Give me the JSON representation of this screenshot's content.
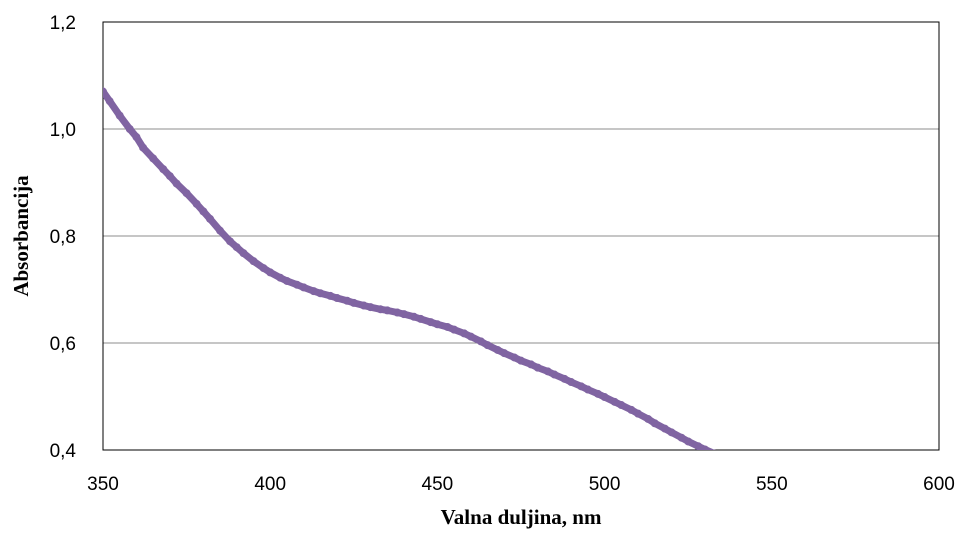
{
  "chart_data": {
    "type": "scatter",
    "title": "",
    "xlabel": "Valna duljina, nm",
    "ylabel": "Absorbancija",
    "xlim": [
      350,
      600
    ],
    "ylim": [
      0.4,
      1.2
    ],
    "x_ticks": [
      "350",
      "400",
      "450",
      "500",
      "550",
      "600"
    ],
    "y_ticks": [
      "0,4",
      "0,6",
      "0,8",
      "1,0",
      "1,2"
    ],
    "grid": "horizontal",
    "legend": "none",
    "marker_color": "#8064A2",
    "series": [
      {
        "x": [
          350,
          352,
          355,
          358,
          360,
          362,
          365,
          368,
          370,
          372,
          375,
          378,
          380,
          382,
          385,
          388,
          390,
          392,
          395,
          398,
          400,
          403,
          405,
          408,
          410,
          413,
          415,
          418,
          420,
          423,
          425,
          428,
          430,
          433,
          435,
          438,
          440,
          443,
          445,
          448,
          450,
          453,
          455,
          458,
          460,
          463,
          465,
          468,
          470,
          473,
          475,
          478,
          480,
          483,
          485,
          488,
          490,
          493,
          495,
          498,
          500,
          503,
          505,
          508,
          510,
          513,
          515,
          518,
          520,
          523,
          525,
          528,
          530,
          533,
          535,
          538,
          540,
          543,
          545
        ],
        "y": [
          1.07,
          1.052,
          1.025,
          1.0,
          0.985,
          0.965,
          0.945,
          0.925,
          0.912,
          0.898,
          0.88,
          0.86,
          0.846,
          0.832,
          0.81,
          0.79,
          0.779,
          0.768,
          0.753,
          0.74,
          0.732,
          0.722,
          0.716,
          0.709,
          0.704,
          0.697,
          0.693,
          0.688,
          0.684,
          0.679,
          0.675,
          0.67,
          0.667,
          0.663,
          0.661,
          0.657,
          0.654,
          0.649,
          0.645,
          0.639,
          0.635,
          0.63,
          0.625,
          0.618,
          0.612,
          0.603,
          0.596,
          0.587,
          0.581,
          0.573,
          0.567,
          0.56,
          0.554,
          0.547,
          0.541,
          0.533,
          0.527,
          0.519,
          0.513,
          0.505,
          0.499,
          0.49,
          0.484,
          0.475,
          0.468,
          0.458,
          0.45,
          0.44,
          0.433,
          0.423,
          0.416,
          0.407,
          0.401,
          0.393,
          0.385,
          0.375,
          0.368,
          0.358,
          0.35
        ]
      }
    ]
  }
}
